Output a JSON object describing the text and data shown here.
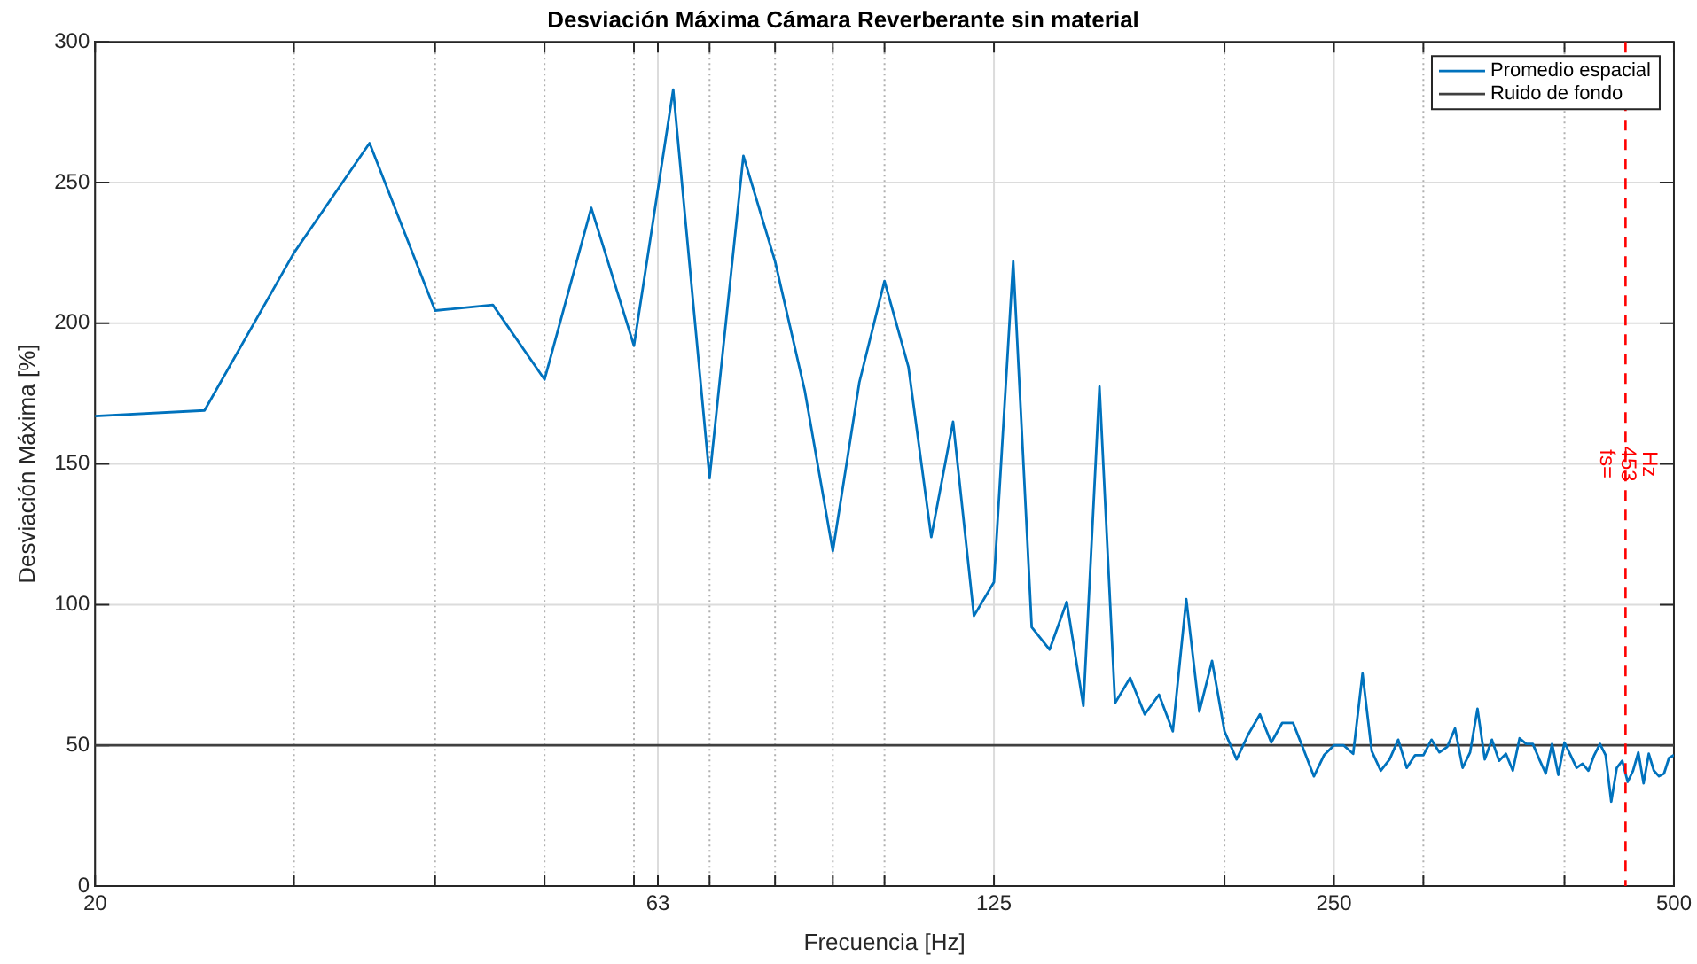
{
  "chart_data": {
    "type": "line",
    "title": "Desviación Máxima Cámara Reverberante sin material",
    "xlabel": "Frecuencia [Hz]",
    "ylabel": "Desviación Máxima [%]",
    "log": "x",
    "xlim": [
      20,
      500
    ],
    "xticks": [
      20,
      {
        "value": 30,
        "label": null
      },
      {
        "value": 40,
        "label": null
      },
      {
        "value": 50,
        "label": null
      },
      {
        "value": 60,
        "label": null
      },
      63,
      {
        "value": 70,
        "label": null
      },
      {
        "value": 80,
        "label": null
      },
      {
        "value": 90,
        "label": null
      },
      {
        "value": 100,
        "label": null
      },
      125,
      {
        "value": 200,
        "label": null
      },
      250,
      {
        "value": 300,
        "label": null
      },
      {
        "value": 400,
        "label": null
      },
      500
    ],
    "ylim": [
      0,
      300
    ],
    "yticks": [
      0,
      50,
      100,
      150,
      200,
      250,
      300
    ],
    "grid": true,
    "legend": "top right",
    "marker": "none",
    "series": [
      {
        "name": "Promedio espacial",
        "color": "#0072bd",
        "x": [
          20,
          25,
          30,
          35,
          40,
          45,
          50,
          55,
          60,
          65,
          70,
          75,
          80,
          85,
          90,
          95,
          100,
          105,
          110,
          115,
          120,
          125,
          130,
          135,
          140,
          145,
          150,
          155,
          160,
          165,
          170,
          175,
          180,
          185,
          190,
          195,
          200,
          205,
          210,
          215,
          220,
          225,
          230,
          235,
          240,
          245,
          250,
          255,
          260,
          265,
          270,
          275,
          280,
          285,
          290,
          295,
          300,
          305,
          310,
          315,
          320,
          325,
          330,
          335,
          340,
          345,
          350,
          355,
          360,
          365,
          370,
          375,
          380,
          385,
          390,
          395,
          400,
          405,
          410,
          415,
          420,
          425,
          430,
          435,
          440,
          445,
          450,
          455,
          460,
          465,
          470,
          475,
          480,
          485,
          490,
          495,
          500
        ],
        "values": [
          167,
          169,
          225,
          264,
          204.5,
          206.5,
          180,
          241,
          192,
          283,
          145,
          259.5,
          222,
          176,
          119,
          179,
          215,
          184.5,
          124,
          165,
          96,
          108,
          222,
          92,
          84,
          101,
          64,
          177.5,
          65,
          74,
          61,
          68,
          55,
          102,
          62,
          80,
          55,
          45,
          54,
          61,
          51,
          58,
          58,
          48.5,
          39,
          46.5,
          50,
          50,
          47,
          75.5,
          48,
          41,
          45,
          52,
          42,
          46.5,
          46.5,
          52,
          47.5,
          49.5,
          56,
          42,
          47.5,
          63,
          45,
          52,
          44.5,
          47,
          41,
          52.5,
          50.5,
          50.5,
          45,
          40,
          50.5,
          39.5,
          51,
          46.5,
          42,
          43.5,
          41,
          46.5,
          50.5,
          46.5,
          30,
          42,
          44.5,
          37,
          41,
          47.5,
          36.5,
          47,
          41,
          39,
          40,
          45.5,
          46.5
        ]
      },
      {
        "name": "Ruido de fondo",
        "color": "#404040",
        "x": [
          20,
          500
        ],
        "values": [
          50,
          50
        ]
      }
    ],
    "ref_lines": [
      {
        "axis": "x",
        "value": 453,
        "label": "fs= 453 Hz",
        "color": "#ff0000",
        "line_style": "dashed"
      }
    ]
  }
}
